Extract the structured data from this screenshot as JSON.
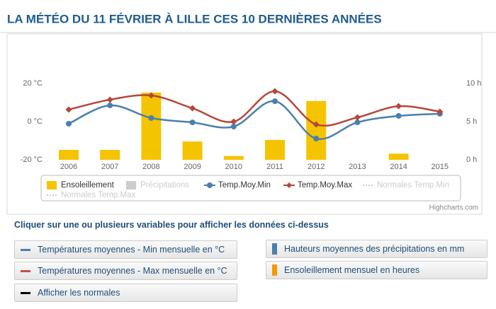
{
  "title": "LA MÉTÉO DU 11 FÉVRIER À LILLE CES 10 DERNIÈRES ANNÉES",
  "chart_data": {
    "type": "combo",
    "categories": [
      "2006",
      "2007",
      "2008",
      "2009",
      "2010",
      "2011",
      "2012",
      "2013",
      "2014",
      "2015"
    ],
    "ylim": [
      -20,
      20
    ],
    "yticks": [
      {
        "value": -20,
        "label": "-20 °C"
      },
      {
        "value": 0,
        "label": "0 °C"
      },
      {
        "value": 20,
        "label": "20 °C"
      }
    ],
    "y2lim": [
      0,
      10
    ],
    "y2ticks": [
      {
        "value": 0,
        "label": "0 h"
      },
      {
        "value": 5,
        "label": "5 h"
      },
      {
        "value": 10,
        "label": "10 h"
      }
    ],
    "grid": false,
    "series": [
      {
        "name": "Ensoleillement",
        "type": "bar",
        "axis": "y2",
        "color": "#f5c400",
        "values": [
          1.3,
          1.3,
          8.8,
          2.4,
          0.5,
          2.6,
          7.7,
          null,
          0.8,
          null
        ]
      },
      {
        "name": "Précipitations",
        "type": "bar",
        "hidden": true,
        "color": "#cccccc",
        "values": [
          null,
          null,
          null,
          null,
          null,
          null,
          null,
          null,
          null,
          null
        ]
      },
      {
        "name": "Temp.Moy.Min",
        "type": "line",
        "marker": "circle",
        "color": "#4a7fae",
        "values": [
          -1.1,
          8.5,
          1.9,
          -0.4,
          -2.6,
          10.7,
          -8.9,
          -0.4,
          3.0,
          4.1
        ]
      },
      {
        "name": "Temp.Moy.Max",
        "type": "line",
        "marker": "diamond",
        "color": "#b5473a",
        "values": [
          6.3,
          11.5,
          13.7,
          7.0,
          0.0,
          15.9,
          -1.5,
          2.2,
          8.1,
          5.2
        ]
      },
      {
        "name": "Normales Temp.Min",
        "type": "line",
        "hidden": true,
        "color": "#cccccc",
        "values": [
          null,
          null,
          null,
          null,
          null,
          null,
          null,
          null,
          null,
          null
        ]
      },
      {
        "name": "Normales Temp.Max",
        "type": "line",
        "hidden": true,
        "color": "#cccccc",
        "values": [
          null,
          null,
          null,
          null,
          null,
          null,
          null,
          null,
          null,
          null
        ]
      }
    ],
    "credit": "Highcharts.com"
  },
  "instruction": "Cliquer sur une ou plusieurs variables pour afficher les données ci-dessus",
  "buttons": [
    {
      "label": "Températures moyennes - Min mensuelle en °C",
      "color": "#4a7fae"
    },
    {
      "label": "Hauteurs moyennes des précipitations en mm",
      "color": "#4a7fae"
    },
    {
      "label": "Températures moyennes - Max mensuelle en °C",
      "color": "#c0504d"
    },
    {
      "label": "Ensoleillement mensuel en heures",
      "color": "#f59a00"
    },
    {
      "label": "Afficher les normales",
      "color": "#000000"
    }
  ]
}
